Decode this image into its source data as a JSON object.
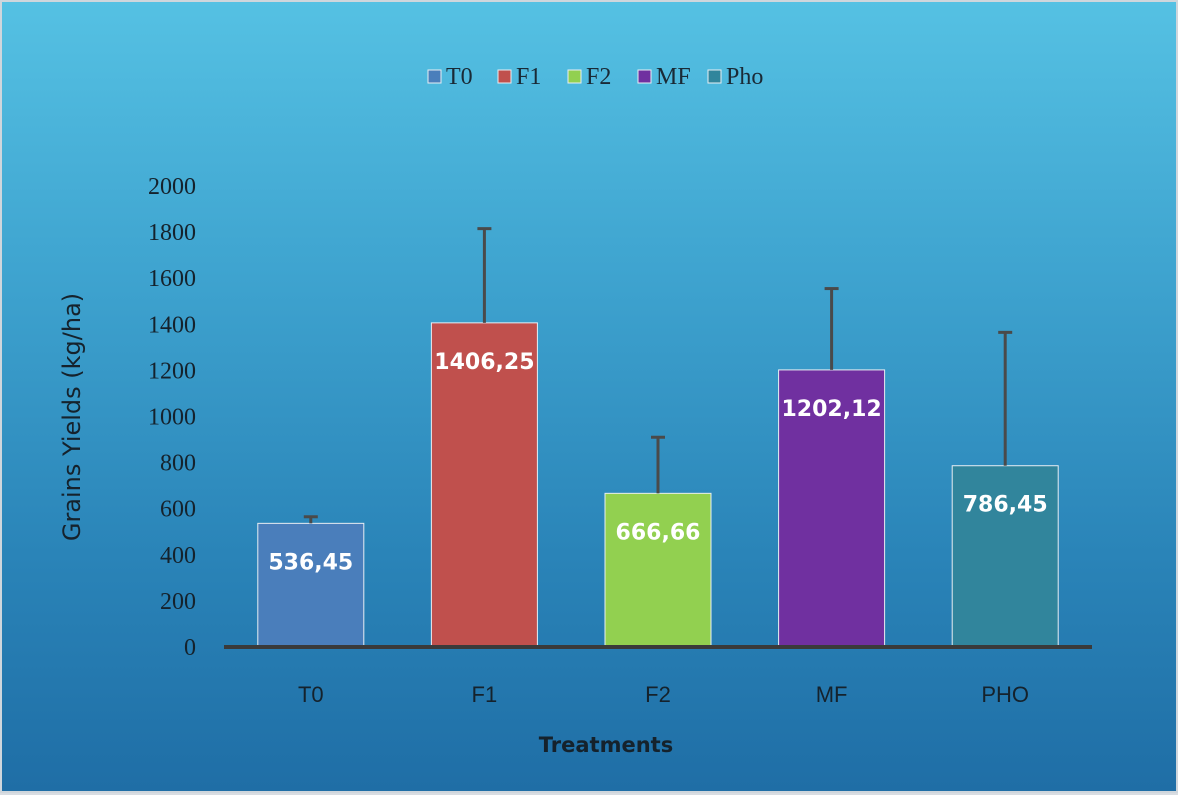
{
  "chart_data": {
    "type": "bar",
    "categories": [
      "T0",
      "F1",
      "F2",
      "MF",
      "PHO"
    ],
    "values": [
      536.45,
      1406.25,
      666.66,
      1202.12,
      786.45
    ],
    "value_labels": [
      "536,45",
      "1406,25",
      "666,66",
      "1202,12",
      "786,45"
    ],
    "error_upper": [
      565,
      1815,
      910,
      1555,
      1365
    ],
    "colors": [
      "#4a7ebb",
      "#c0504d",
      "#92d050",
      "#7030a0",
      "#31859c"
    ],
    "legend": {
      "position": "top",
      "entries": [
        "T0",
        "F1",
        "F2",
        "MF",
        "Pho"
      ]
    },
    "title": "",
    "xlabel": "Treatments",
    "ylabel": "Grains Yields  (kg/ha)",
    "ylim": [
      0,
      2000
    ],
    "yticks": [
      "0",
      "200",
      "400",
      "600",
      "800",
      "1000",
      "1200",
      "1400",
      "1600",
      "1800",
      "2000"
    ],
    "grid": false
  }
}
